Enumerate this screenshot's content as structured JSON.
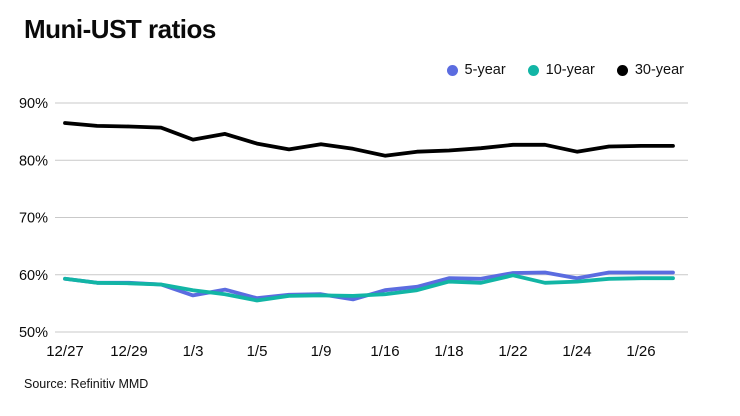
{
  "title": "Muni-UST ratios",
  "source": "Source: Refinitiv MMD",
  "chart_data": {
    "type": "line",
    "title": "Muni-UST ratios",
    "xlabel": "",
    "ylabel": "",
    "ylim": [
      50,
      90
    ],
    "y_ticks": [
      50,
      60,
      70,
      80,
      90
    ],
    "y_tick_suffix": "%",
    "grid": "horizontal",
    "legend_position": "top-right",
    "x_labels": [
      "12/27",
      "12/29",
      "1/3",
      "1/5",
      "1/9",
      "1/16",
      "1/18",
      "1/22",
      "1/24",
      "1/26"
    ],
    "x_label_indices": [
      0,
      2,
      4,
      6,
      8,
      10,
      12,
      14,
      16,
      18
    ],
    "n_points": 20,
    "series": [
      {
        "name": "5-year",
        "color": "#5b6ce0",
        "values": [
          59.3,
          58.6,
          58.6,
          58.3,
          56.4,
          57.4,
          55.9,
          56.5,
          56.6,
          55.7,
          57.3,
          57.9,
          59.4,
          59.3,
          60.3,
          60.4,
          59.4,
          60.4,
          60.4,
          60.4
        ]
      },
      {
        "name": "10-year",
        "color": "#12b5a5",
        "values": [
          59.3,
          58.6,
          58.5,
          58.3,
          57.3,
          56.6,
          55.5,
          56.3,
          56.4,
          56.3,
          56.6,
          57.3,
          58.8,
          58.6,
          59.9,
          58.6,
          58.8,
          59.3,
          59.4,
          59.4
        ]
      },
      {
        "name": "30-year",
        "color": "#000000",
        "values": [
          86.5,
          86.0,
          85.9,
          85.7,
          83.6,
          84.6,
          82.9,
          81.9,
          82.8,
          82.0,
          80.8,
          81.5,
          81.7,
          82.1,
          82.7,
          82.7,
          81.5,
          82.4,
          82.5,
          82.5
        ]
      }
    ],
    "gridline_color": "#c9c9c9",
    "text_color": "#0a0a0a"
  }
}
